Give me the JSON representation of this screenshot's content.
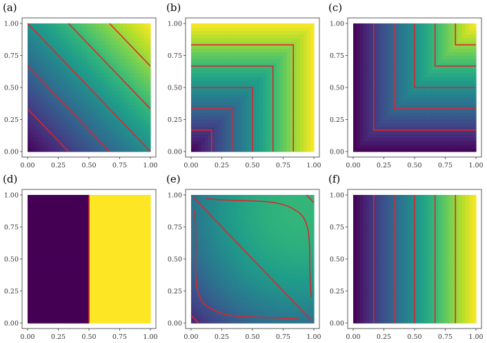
{
  "figure": {
    "layout": "2x3 grid of heatmap panels with contour lines"
  },
  "colors": {
    "colormap": [
      "#440154",
      "#482878",
      "#3e4a89",
      "#31688e",
      "#26828e",
      "#1f9e89",
      "#35b779",
      "#6ece58",
      "#b5de2b",
      "#fde725"
    ],
    "contour": "#e0242a",
    "frame": "#333333"
  },
  "chart_data": [
    {
      "type": "heatmap",
      "label": "(a)",
      "function": "sum",
      "xlim": [
        0,
        1
      ],
      "ylim": [
        0,
        1
      ],
      "x_ticks": [
        "0.00",
        "0.25",
        "0.50",
        "0.75",
        "1.00"
      ],
      "y_ticks": [
        "0.00",
        "0.25",
        "0.50",
        "0.75",
        "1.00"
      ],
      "contour_levels": [
        0.333,
        0.667,
        1.0,
        1.333,
        1.667
      ]
    },
    {
      "type": "heatmap",
      "label": "(b)",
      "function": "max",
      "xlim": [
        0,
        1
      ],
      "ylim": [
        0,
        1
      ],
      "x_ticks": [
        "0.00",
        "0.25",
        "0.50",
        "0.75",
        "1.00"
      ],
      "y_ticks": [
        "0.00",
        "0.25",
        "0.50",
        "0.75",
        "1.00"
      ],
      "contour_levels": [
        0.167,
        0.333,
        0.5,
        0.667,
        0.833
      ]
    },
    {
      "type": "heatmap",
      "label": "(c)",
      "function": "min",
      "xlim": [
        0,
        1
      ],
      "ylim": [
        0,
        1
      ],
      "x_ticks": [
        "0.00",
        "0.25",
        "0.50",
        "0.75",
        "1.00"
      ],
      "y_ticks": [
        "0.00",
        "0.25",
        "0.50",
        "0.75",
        "1.00"
      ],
      "contour_levels": [
        0.167,
        0.333,
        0.5,
        0.667,
        0.833
      ]
    },
    {
      "type": "heatmap",
      "label": "(d)",
      "function": "step_x",
      "xlim": [
        0,
        1
      ],
      "ylim": [
        0,
        1
      ],
      "x_ticks": [
        "0.00",
        "0.25",
        "0.50",
        "0.75",
        "1.00"
      ],
      "y_ticks": [
        "0.00",
        "0.25",
        "0.50",
        "0.75",
        "1.00"
      ],
      "contour_levels": [
        0.5
      ]
    },
    {
      "type": "heatmap",
      "label": "(e)",
      "function": "saddle",
      "xlim": [
        0,
        1
      ],
      "ylim": [
        0,
        1
      ],
      "x_ticks": [
        "0.00",
        "0.25",
        "0.50",
        "0.75",
        "1.00"
      ],
      "y_ticks": [
        "0.00",
        "0.25",
        "0.50",
        "0.75",
        "1.00"
      ],
      "contour_levels": [
        0.05,
        0.5,
        0.95
      ]
    },
    {
      "type": "heatmap",
      "label": "(f)",
      "function": "x",
      "xlim": [
        0,
        1
      ],
      "ylim": [
        0,
        1
      ],
      "x_ticks": [
        "0.00",
        "0.25",
        "0.50",
        "0.75",
        "1.00"
      ],
      "y_ticks": [
        "0.00",
        "0.25",
        "0.50",
        "0.75",
        "1.00"
      ],
      "contour_levels": [
        0.167,
        0.333,
        0.5,
        0.667,
        0.833
      ]
    }
  ]
}
